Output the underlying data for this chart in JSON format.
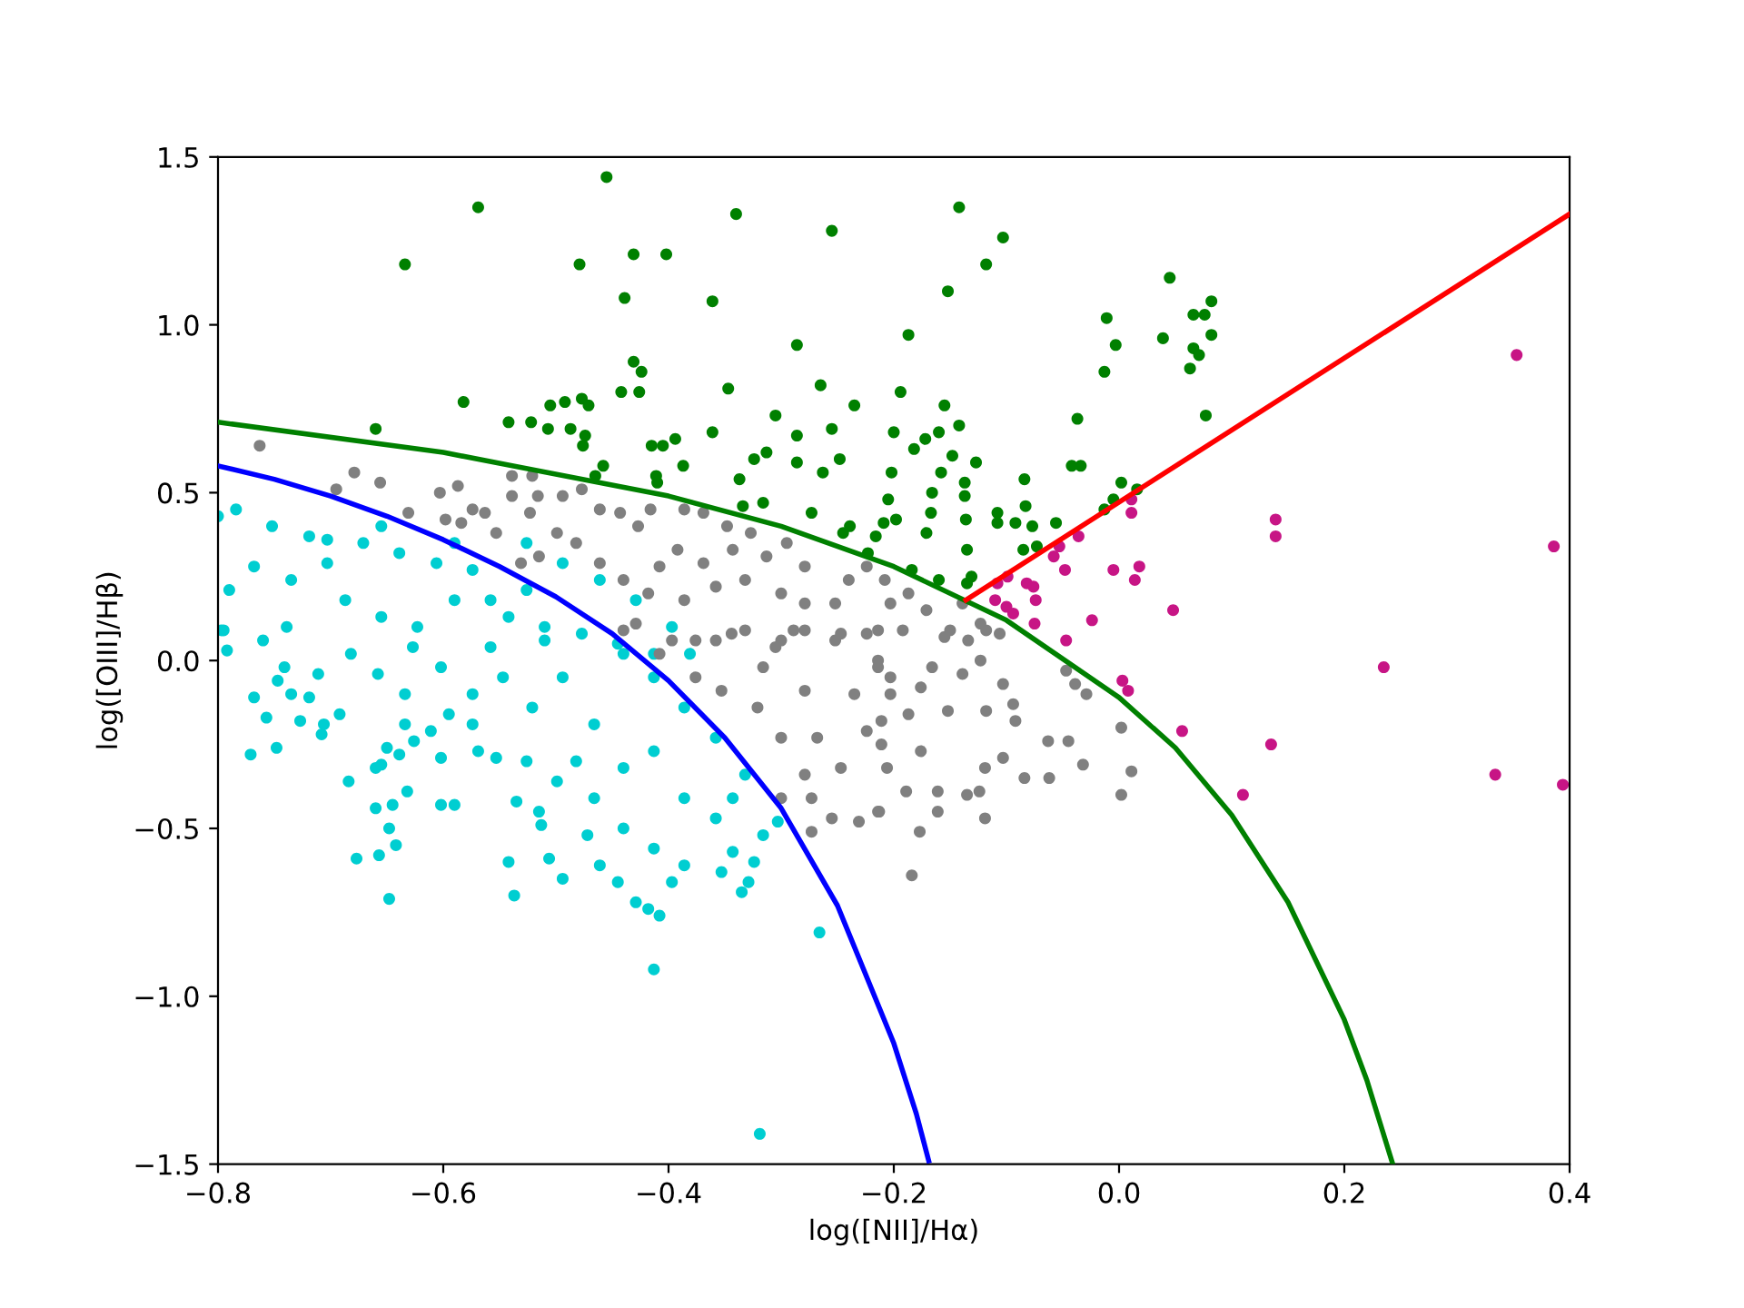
{
  "chart_data": {
    "type": "scatter",
    "xlabel": "log([NII]/Hα)",
    "ylabel": "log([OIII]/Hβ)",
    "xlim": [
      -0.8,
      0.4
    ],
    "ylim": [
      -1.5,
      1.5
    ],
    "xticks": [
      {
        "value": -0.8,
        "label": "−0.8"
      },
      {
        "value": -0.6,
        "label": "−0.6"
      },
      {
        "value": -0.4,
        "label": "−0.4"
      },
      {
        "value": -0.2,
        "label": "−0.2"
      },
      {
        "value": 0.0,
        "label": "0.0"
      },
      {
        "value": 0.2,
        "label": "0.2"
      },
      {
        "value": 0.4,
        "label": "0.4"
      }
    ],
    "yticks": [
      {
        "value": -1.5,
        "label": "−1.5"
      },
      {
        "value": -1.0,
        "label": "−1.0"
      },
      {
        "value": -0.5,
        "label": "−0.5"
      },
      {
        "value": 0.0,
        "label": "0.0"
      },
      {
        "value": 0.5,
        "label": "0.5"
      },
      {
        "value": 1.0,
        "label": "1.0"
      },
      {
        "value": 1.5,
        "label": "1.5"
      }
    ],
    "series": [
      {
        "marker": "circle",
        "color": "#00ced1",
        "x": [
          -0.8,
          -0.784,
          -0.752,
          -0.719,
          -0.79,
          -0.797,
          -0.768,
          -0.735,
          -0.703,
          -0.671,
          -0.639,
          -0.606,
          -0.574,
          -0.687,
          -0.655,
          -0.623,
          -0.59,
          -0.558,
          -0.526,
          -0.542,
          -0.51,
          -0.477,
          -0.445,
          -0.413,
          -0.703,
          -0.655,
          -0.59,
          -0.526,
          -0.494,
          -0.461,
          -0.429,
          -0.397,
          -0.381,
          -0.795,
          -0.792,
          -0.76,
          -0.739,
          -0.768,
          -0.757,
          -0.771,
          -0.748,
          -0.741,
          -0.747,
          -0.735,
          -0.719,
          -0.727,
          -0.711,
          -0.706,
          -0.708,
          -0.692,
          -0.684,
          -0.677,
          -0.657,
          -0.648,
          -0.66,
          -0.645,
          -0.648,
          -0.642,
          -0.66,
          -0.655,
          -0.65,
          -0.639,
          -0.634,
          -0.632,
          -0.658,
          -0.634,
          -0.626,
          -0.611,
          -0.602,
          -0.602,
          -0.59,
          -0.595,
          -0.574,
          -0.569,
          -0.553,
          -0.542,
          -0.537,
          -0.535,
          -0.515,
          -0.513,
          -0.506,
          -0.494,
          -0.526,
          -0.499,
          -0.482,
          -0.472,
          -0.461,
          -0.445,
          -0.429,
          -0.418,
          -0.408,
          -0.413,
          -0.397,
          -0.386,
          -0.353,
          -0.335,
          -0.324,
          -0.329,
          -0.343,
          -0.316,
          -0.303,
          -0.266,
          -0.319,
          -0.44,
          -0.413,
          -0.466,
          -0.44,
          -0.386,
          -0.358,
          -0.343,
          -0.332,
          -0.358,
          -0.386,
          -0.413,
          -0.44,
          -0.494,
          -0.521,
          -0.466,
          -0.413,
          -0.547,
          -0.574,
          -0.602,
          -0.627,
          -0.682,
          -0.558,
          -0.51
        ],
        "values": [
          0.43,
          0.45,
          0.4,
          0.37,
          0.21,
          0.09,
          0.28,
          0.24,
          0.29,
          0.35,
          0.32,
          0.29,
          0.27,
          0.18,
          0.13,
          0.1,
          0.18,
          0.18,
          0.21,
          0.13,
          0.1,
          0.08,
          0.05,
          0.02,
          0.36,
          0.4,
          0.35,
          0.35,
          0.29,
          0.24,
          0.18,
          0.1,
          0.02,
          0.09,
          0.03,
          0.06,
          0.1,
          -0.11,
          -0.17,
          -0.28,
          -0.26,
          -0.02,
          -0.06,
          -0.1,
          -0.11,
          -0.18,
          -0.04,
          -0.19,
          -0.22,
          -0.16,
          -0.36,
          -0.59,
          -0.58,
          -0.71,
          -0.44,
          -0.43,
          -0.5,
          -0.55,
          -0.32,
          -0.31,
          -0.26,
          -0.28,
          -0.19,
          -0.39,
          -0.04,
          -0.1,
          -0.24,
          -0.21,
          -0.29,
          -0.43,
          -0.43,
          -0.16,
          -0.19,
          -0.27,
          -0.29,
          -0.6,
          -0.7,
          -0.42,
          -0.45,
          -0.49,
          -0.59,
          -0.65,
          -0.3,
          -0.36,
          -0.3,
          -0.52,
          -0.61,
          -0.66,
          -0.72,
          -0.74,
          -0.76,
          -0.92,
          -0.66,
          -0.61,
          -0.63,
          -0.69,
          -0.6,
          -0.66,
          -0.57,
          -0.52,
          -0.48,
          -0.81,
          -1.41,
          -0.5,
          -0.56,
          -0.41,
          -0.32,
          -0.41,
          -0.47,
          -0.41,
          -0.34,
          -0.23,
          -0.14,
          -0.05,
          0.02,
          -0.05,
          -0.14,
          -0.19,
          -0.27,
          -0.05,
          -0.1,
          -0.02,
          0.04,
          0.02,
          0.04,
          0.06
        ]
      },
      {
        "marker": "circle",
        "color": "#808080",
        "x": [
          -0.763,
          -0.679,
          -0.656,
          -0.695,
          -0.603,
          -0.587,
          -0.631,
          -0.598,
          -0.584,
          -0.574,
          -0.539,
          -0.539,
          -0.521,
          -0.516,
          -0.523,
          -0.553,
          -0.563,
          -0.494,
          -0.477,
          -0.461,
          -0.499,
          -0.482,
          -0.443,
          -0.427,
          -0.416,
          -0.386,
          -0.369,
          -0.348,
          -0.327,
          -0.313,
          -0.343,
          -0.369,
          -0.392,
          -0.408,
          -0.418,
          -0.44,
          -0.461,
          -0.515,
          -0.531,
          -0.429,
          -0.386,
          -0.358,
          -0.332,
          -0.3,
          -0.279,
          -0.252,
          -0.224,
          -0.279,
          -0.295,
          -0.24,
          -0.214,
          -0.247,
          -0.289,
          -0.332,
          -0.358,
          -0.397,
          -0.305,
          -0.208,
          -0.203,
          -0.187,
          -0.171,
          -0.15,
          -0.139,
          -0.123,
          -0.192,
          -0.106,
          -0.44,
          -0.408,
          -0.376,
          -0.344,
          -0.316,
          -0.3,
          -0.279,
          -0.252,
          -0.224,
          -0.214,
          -0.235,
          -0.279,
          -0.321,
          -0.353,
          -0.376,
          -0.3,
          -0.268,
          -0.224,
          -0.247,
          -0.279,
          -0.273,
          -0.255,
          -0.231,
          -0.214,
          -0.3,
          -0.273,
          -0.155,
          -0.134,
          -0.118,
          -0.214,
          -0.203,
          -0.166,
          -0.139,
          -0.123,
          -0.176,
          -0.203,
          -0.211,
          -0.187,
          -0.152,
          -0.118,
          -0.103,
          -0.094,
          -0.092,
          -0.047,
          -0.039,
          -0.029,
          0.002,
          0.011,
          0.002,
          -0.032,
          -0.045,
          -0.063,
          -0.062,
          -0.084,
          -0.103,
          -0.119,
          -0.124,
          -0.135,
          -0.119,
          -0.161,
          -0.161,
          -0.189,
          -0.176,
          -0.211,
          -0.206,
          -0.213,
          -0.177,
          -0.184
        ],
        "values": [
          0.64,
          0.56,
          0.53,
          0.51,
          0.5,
          0.52,
          0.44,
          0.42,
          0.41,
          0.45,
          0.55,
          0.49,
          0.55,
          0.49,
          0.44,
          0.38,
          0.44,
          0.49,
          0.51,
          0.45,
          0.38,
          0.35,
          0.44,
          0.4,
          0.45,
          0.45,
          0.44,
          0.4,
          0.38,
          0.31,
          0.33,
          0.29,
          0.33,
          0.28,
          0.2,
          0.24,
          0.29,
          0.31,
          0.29,
          0.11,
          0.18,
          0.22,
          0.24,
          0.2,
          0.17,
          0.17,
          0.28,
          0.28,
          0.35,
          0.24,
          0.09,
          0.08,
          0.09,
          0.09,
          0.06,
          0.06,
          0.04,
          0.24,
          0.17,
          0.2,
          0.15,
          0.09,
          0.17,
          0.11,
          0.09,
          0.08,
          0.09,
          0.02,
          0.06,
          0.08,
          -0.02,
          0.06,
          0.09,
          0.06,
          0.08,
          -0.02,
          -0.1,
          -0.09,
          -0.14,
          -0.09,
          -0.05,
          -0.23,
          -0.23,
          -0.21,
          -0.32,
          -0.34,
          -0.41,
          -0.47,
          -0.48,
          -0.45,
          -0.41,
          -0.51,
          0.07,
          0.06,
          0.09,
          0.0,
          -0.05,
          -0.02,
          -0.04,
          0.0,
          -0.08,
          -0.1,
          -0.18,
          -0.16,
          -0.15,
          -0.15,
          -0.07,
          -0.13,
          -0.18,
          -0.03,
          -0.07,
          -0.1,
          -0.2,
          -0.33,
          -0.4,
          -0.31,
          -0.24,
          -0.24,
          -0.35,
          -0.35,
          -0.29,
          -0.32,
          -0.39,
          -0.4,
          -0.47,
          -0.39,
          -0.45,
          -0.39,
          -0.27,
          -0.25,
          -0.32,
          -0.45,
          -0.51,
          -0.64
        ]
      },
      {
        "marker": "circle",
        "color": "#008000",
        "x": [
          -0.634,
          -0.569,
          -0.455,
          -0.479,
          -0.431,
          -0.402,
          -0.439,
          -0.361,
          -0.34,
          -0.255,
          -0.286,
          -0.431,
          -0.424,
          -0.442,
          -0.426,
          -0.347,
          -0.265,
          -0.235,
          -0.582,
          -0.66,
          -0.542,
          -0.522,
          -0.505,
          -0.492,
          -0.477,
          -0.471,
          -0.507,
          -0.487,
          -0.474,
          -0.476,
          -0.458,
          -0.415,
          -0.405,
          -0.394,
          -0.387,
          -0.361,
          -0.305,
          -0.313,
          -0.324,
          -0.337,
          -0.411,
          -0.41,
          -0.465,
          -0.334,
          -0.316,
          -0.286,
          -0.286,
          -0.255,
          -0.248,
          -0.263,
          -0.273,
          -0.245,
          -0.239,
          -0.223,
          -0.216,
          -0.209,
          -0.142,
          -0.103,
          -0.118,
          -0.152,
          -0.187,
          0.045,
          -0.011,
          -0.003,
          -0.013,
          0.039,
          0.066,
          0.076,
          0.082,
          0.082,
          0.066,
          0.071,
          0.063,
          0.077,
          -0.037,
          -0.042,
          -0.034,
          0.002,
          -0.005,
          -0.013,
          0.016,
          -0.084,
          -0.083,
          -0.092,
          -0.077,
          -0.056,
          -0.073,
          -0.085,
          -0.108,
          -0.108,
          -0.136,
          -0.137,
          -0.137,
          -0.127,
          -0.142,
          -0.155,
          -0.16,
          -0.148,
          -0.158,
          -0.166,
          -0.172,
          -0.182,
          -0.2,
          -0.194,
          -0.202,
          -0.205,
          -0.198,
          -0.171,
          -0.167,
          -0.135,
          -0.131,
          -0.16,
          -0.184,
          -0.135
        ],
        "values": [
          1.18,
          1.35,
          1.44,
          1.18,
          1.21,
          1.21,
          1.08,
          1.07,
          1.33,
          1.28,
          0.94,
          0.89,
          0.86,
          0.8,
          0.8,
          0.81,
          0.82,
          0.76,
          0.77,
          0.69,
          0.71,
          0.71,
          0.76,
          0.77,
          0.78,
          0.76,
          0.69,
          0.69,
          0.67,
          0.64,
          0.58,
          0.64,
          0.64,
          0.66,
          0.58,
          0.68,
          0.73,
          0.62,
          0.6,
          0.54,
          0.55,
          0.53,
          0.55,
          0.46,
          0.47,
          0.67,
          0.59,
          0.69,
          0.6,
          0.56,
          0.44,
          0.38,
          0.4,
          0.32,
          0.37,
          0.41,
          1.35,
          1.26,
          1.18,
          1.1,
          0.97,
          1.14,
          1.02,
          0.94,
          0.86,
          0.96,
          1.03,
          1.03,
          1.07,
          0.97,
          0.93,
          0.91,
          0.87,
          0.73,
          0.72,
          0.58,
          0.58,
          0.53,
          0.48,
          0.45,
          0.51,
          0.54,
          0.46,
          0.41,
          0.4,
          0.41,
          0.34,
          0.33,
          0.44,
          0.41,
          0.42,
          0.49,
          0.53,
          0.59,
          0.7,
          0.76,
          0.68,
          0.61,
          0.56,
          0.5,
          0.66,
          0.63,
          0.68,
          0.8,
          0.56,
          0.48,
          0.42,
          0.38,
          0.44,
          0.33,
          0.25,
          0.24,
          0.27,
          0.23
        ]
      },
      {
        "marker": "circle",
        "color": "#c71585",
        "x": [
          0.353,
          0.139,
          0.139,
          0.386,
          0.011,
          0.011,
          -0.036,
          -0.053,
          -0.058,
          -0.048,
          -0.005,
          0.018,
          0.014,
          0.048,
          -0.024,
          -0.047,
          -0.099,
          -0.108,
          -0.082,
          -0.076,
          -0.11,
          -0.1,
          -0.094,
          -0.074,
          -0.075,
          0.235,
          0.003,
          0.008,
          0.056,
          0.135,
          0.11,
          0.334,
          0.394
        ],
        "values": [
          0.91,
          0.42,
          0.37,
          0.34,
          0.48,
          0.44,
          0.37,
          0.34,
          0.31,
          0.27,
          0.27,
          0.28,
          0.24,
          0.15,
          0.12,
          0.06,
          0.25,
          0.23,
          0.23,
          0.22,
          0.18,
          0.16,
          0.14,
          0.18,
          0.11,
          -0.02,
          -0.06,
          -0.09,
          -0.21,
          -0.25,
          -0.4,
          -0.34,
          -0.37
        ]
      },
      {
        "type": "line",
        "marker": "none",
        "color": "#0000ff",
        "line_style": "solid",
        "x": [
          -0.8,
          -0.75,
          -0.7,
          -0.65,
          -0.6,
          -0.55,
          -0.5,
          -0.45,
          -0.4,
          -0.35,
          -0.3,
          -0.25,
          -0.2,
          -0.18,
          -0.169
        ],
        "values": [
          0.58,
          0.54,
          0.49,
          0.43,
          0.36,
          0.28,
          0.19,
          0.08,
          -0.06,
          -0.23,
          -0.44,
          -0.73,
          -1.14,
          -1.35,
          -1.49
        ]
      },
      {
        "type": "line",
        "marker": "none",
        "color": "#008000",
        "line_style": "solid",
        "x": [
          -0.8,
          -0.6,
          -0.4,
          -0.3,
          -0.2,
          -0.1,
          0.0,
          0.05,
          0.1,
          0.15,
          0.2,
          0.22,
          0.243
        ],
        "values": [
          0.71,
          0.62,
          0.49,
          0.4,
          0.28,
          0.12,
          -0.11,
          -0.26,
          -0.46,
          -0.72,
          -1.07,
          -1.25,
          -1.5
        ]
      },
      {
        "type": "line",
        "marker": "none",
        "color": "#ff0000",
        "line_style": "solid",
        "x": [
          -0.136,
          0.4
        ],
        "values": [
          0.18,
          1.33
        ]
      }
    ]
  }
}
